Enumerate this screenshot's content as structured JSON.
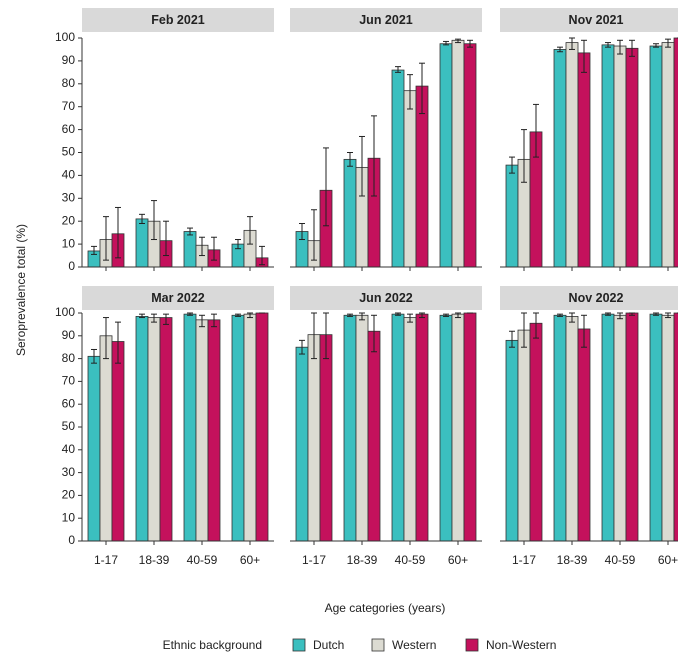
{
  "figure": {
    "y_label": "Seroprevalence total (%)",
    "x_label": "Age categories (years)",
    "legend_title": "Ethnic background"
  },
  "chart_data": [
    {
      "type": "bar",
      "title": "Feb 2021",
      "ylim": [
        0,
        100
      ],
      "yticks": [
        0,
        10,
        20,
        30,
        40,
        50,
        60,
        70,
        80,
        90,
        100
      ],
      "series": [
        {
          "name": "Dutch",
          "color": "#3bbfbf",
          "values": [
            7,
            21,
            15.5,
            10
          ],
          "ci_low": [
            5.5,
            19,
            14,
            8
          ],
          "ci_high": [
            9,
            23,
            17,
            12
          ]
        },
        {
          "name": "Western",
          "color": "#dcdbd2",
          "values": [
            12,
            20,
            9.5,
            16
          ],
          "ci_low": [
            3,
            12,
            5,
            10
          ],
          "ci_high": [
            22,
            29,
            13,
            22
          ]
        },
        {
          "name": "Non-Western",
          "color": "#c4115c",
          "values": [
            14.5,
            11.5,
            7.5,
            4
          ],
          "ci_low": [
            4,
            5,
            3,
            1
          ],
          "ci_high": [
            26,
            20,
            13,
            9
          ]
        }
      ]
    },
    {
      "type": "bar",
      "title": "Jun 2021",
      "ylim": [
        0,
        100
      ],
      "series": [
        {
          "name": "Dutch",
          "color": "#3bbfbf",
          "values": [
            15.5,
            47,
            86,
            97.5
          ],
          "ci_low": [
            12,
            44,
            85,
            97
          ],
          "ci_high": [
            19,
            50,
            87.5,
            98.5
          ]
        },
        {
          "name": "Western",
          "color": "#dcdbd2",
          "values": [
            11.5,
            43.5,
            77,
            99
          ],
          "ci_low": [
            3,
            31,
            69,
            98
          ],
          "ci_high": [
            25,
            57,
            84,
            99.5
          ]
        },
        {
          "name": "Non-Western",
          "color": "#c4115c",
          "values": [
            33.5,
            47.5,
            79,
            97.5
          ],
          "ci_low": [
            18,
            31,
            67,
            96
          ],
          "ci_high": [
            52,
            66,
            89,
            99
          ]
        }
      ]
    },
    {
      "type": "bar",
      "title": "Nov 2021",
      "ylim": [
        0,
        100
      ],
      "series": [
        {
          "name": "Dutch",
          "color": "#3bbfbf",
          "values": [
            44.5,
            95,
            97,
            96.5
          ],
          "ci_low": [
            41,
            94,
            96,
            96
          ],
          "ci_high": [
            48,
            96,
            98,
            97.5
          ]
        },
        {
          "name": "Western",
          "color": "#dcdbd2",
          "values": [
            47,
            98,
            96.5,
            98
          ],
          "ci_low": [
            37,
            95,
            93,
            96
          ],
          "ci_high": [
            60,
            100,
            99,
            99.5
          ]
        },
        {
          "name": "Non-Western",
          "color": "#c4115c",
          "values": [
            59,
            93.5,
            95.5,
            100
          ],
          "ci_low": [
            48,
            85,
            92,
            100
          ],
          "ci_high": [
            71,
            99,
            99,
            100
          ]
        }
      ]
    },
    {
      "type": "bar",
      "title": "Mar 2022",
      "ylim": [
        0,
        100
      ],
      "yticks": [
        0,
        10,
        20,
        30,
        40,
        50,
        60,
        70,
        80,
        90,
        100
      ],
      "categories": [
        "1-17",
        "18-39",
        "40-59",
        "60+"
      ],
      "series": [
        {
          "name": "Dutch",
          "color": "#3bbfbf",
          "values": [
            81,
            98.5,
            99.5,
            99
          ],
          "ci_low": [
            78,
            98,
            99,
            98.5
          ],
          "ci_high": [
            84,
            99.5,
            100,
            99.5
          ]
        },
        {
          "name": "Western",
          "color": "#dcdbd2",
          "values": [
            90,
            98,
            97,
            99.5
          ],
          "ci_low": [
            80,
            96,
            94,
            98
          ],
          "ci_high": [
            98,
            99.5,
            99,
            100
          ]
        },
        {
          "name": "Non-Western",
          "color": "#c4115c",
          "values": [
            87.5,
            98,
            97,
            100
          ],
          "ci_low": [
            78,
            95,
            94,
            100
          ],
          "ci_high": [
            96,
            99.5,
            99.5,
            100
          ]
        }
      ]
    },
    {
      "type": "bar",
      "title": "Jun 2022",
      "ylim": [
        0,
        100
      ],
      "categories": [
        "1-17",
        "18-39",
        "40-59",
        "60+"
      ],
      "series": [
        {
          "name": "Dutch",
          "color": "#3bbfbf",
          "values": [
            85,
            99,
            99.5,
            99
          ],
          "ci_low": [
            82,
            98.5,
            99,
            98.5
          ],
          "ci_high": [
            88,
            99.5,
            100,
            99.5
          ]
        },
        {
          "name": "Western",
          "color": "#dcdbd2",
          "values": [
            90.5,
            99,
            98,
            99.5
          ],
          "ci_low": [
            80,
            97,
            96,
            98
          ],
          "ci_high": [
            100,
            100,
            99.5,
            100
          ]
        },
        {
          "name": "Non-Western",
          "color": "#c4115c",
          "values": [
            90.5,
            92,
            99.5,
            100
          ],
          "ci_low": [
            80,
            83,
            98,
            100
          ],
          "ci_high": [
            100,
            99,
            100,
            100
          ]
        }
      ]
    },
    {
      "type": "bar",
      "title": "Nov 2022",
      "ylim": [
        0,
        100
      ],
      "categories": [
        "1-17",
        "18-39",
        "40-59",
        "60+"
      ],
      "series": [
        {
          "name": "Dutch",
          "color": "#3bbfbf",
          "values": [
            88,
            99,
            99.5,
            99.5
          ],
          "ci_low": [
            85,
            98.5,
            99,
            99
          ],
          "ci_high": [
            92,
            99.5,
            100,
            100
          ]
        },
        {
          "name": "Western",
          "color": "#dcdbd2",
          "values": [
            92.5,
            98.5,
            99,
            99
          ],
          "ci_low": [
            85,
            96,
            97.5,
            98
          ],
          "ci_high": [
            100,
            100,
            100,
            100
          ]
        },
        {
          "name": "Non-Western",
          "color": "#c4115c",
          "values": [
            95.5,
            93,
            100,
            100
          ],
          "ci_low": [
            89,
            85,
            99,
            100
          ],
          "ci_high": [
            100,
            99,
            100,
            100
          ]
        }
      ]
    }
  ]
}
